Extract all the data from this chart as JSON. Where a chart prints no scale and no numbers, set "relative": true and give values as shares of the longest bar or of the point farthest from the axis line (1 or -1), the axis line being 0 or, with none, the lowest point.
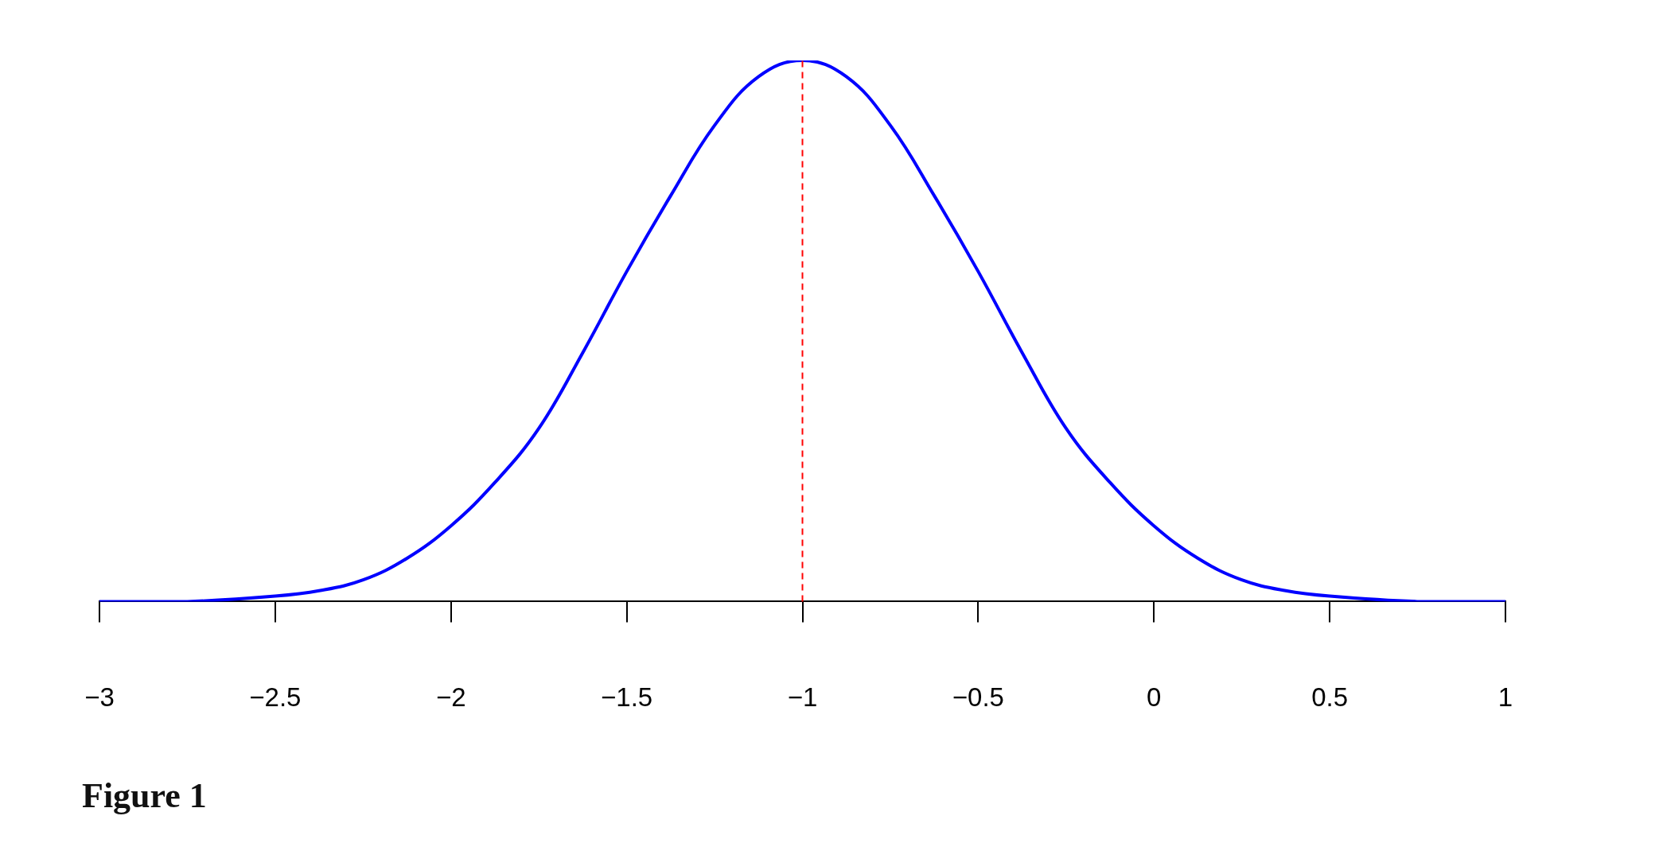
{
  "chart_data": {
    "type": "line",
    "relative": true,
    "x": [
      -3,
      -2.75,
      -2.5,
      -2.375,
      -2.25,
      -2.125,
      -2,
      -1.875,
      -1.75,
      -1.625,
      -1.5,
      -1.375,
      -1.25,
      -1.125,
      -1,
      -0.875,
      -0.75,
      -0.625,
      -0.5,
      -0.375,
      -0.25,
      -0.125,
      0,
      0.125,
      0.25,
      0.375,
      0.5,
      0.75,
      1
    ],
    "series": [
      {
        "color": "#0000ff",
        "values": [
          0,
          0,
          0.01,
          0.02,
          0.04,
          0.08,
          0.14,
          0.22,
          0.32,
          0.46,
          0.61,
          0.75,
          0.88,
          0.97,
          1,
          0.97,
          0.88,
          0.75,
          0.61,
          0.46,
          0.32,
          0.22,
          0.14,
          0.08,
          0.04,
          0.02,
          0.01,
          0,
          0
        ]
      }
    ],
    "xlim": [
      -3,
      1
    ],
    "xticks": [
      {
        "value": -3,
        "label": "−3"
      },
      {
        "value": -2.5,
        "label": "−2.5"
      },
      {
        "value": -2,
        "label": "−2"
      },
      {
        "value": -1.5,
        "label": "−1.5"
      },
      {
        "value": -1,
        "label": "−1"
      },
      {
        "value": -0.5,
        "label": "−0.5"
      },
      0,
      0.5,
      1
    ],
    "tick_labels": "x",
    "grid": false,
    "legend": false,
    "marker": "none",
    "line_style": "solid",
    "ref_lines": [
      {
        "axis": "x",
        "value": -1,
        "color": "#ff0000",
        "line_style": "dashed"
      }
    ],
    "annotations": [
      "Figure 1"
    ]
  }
}
